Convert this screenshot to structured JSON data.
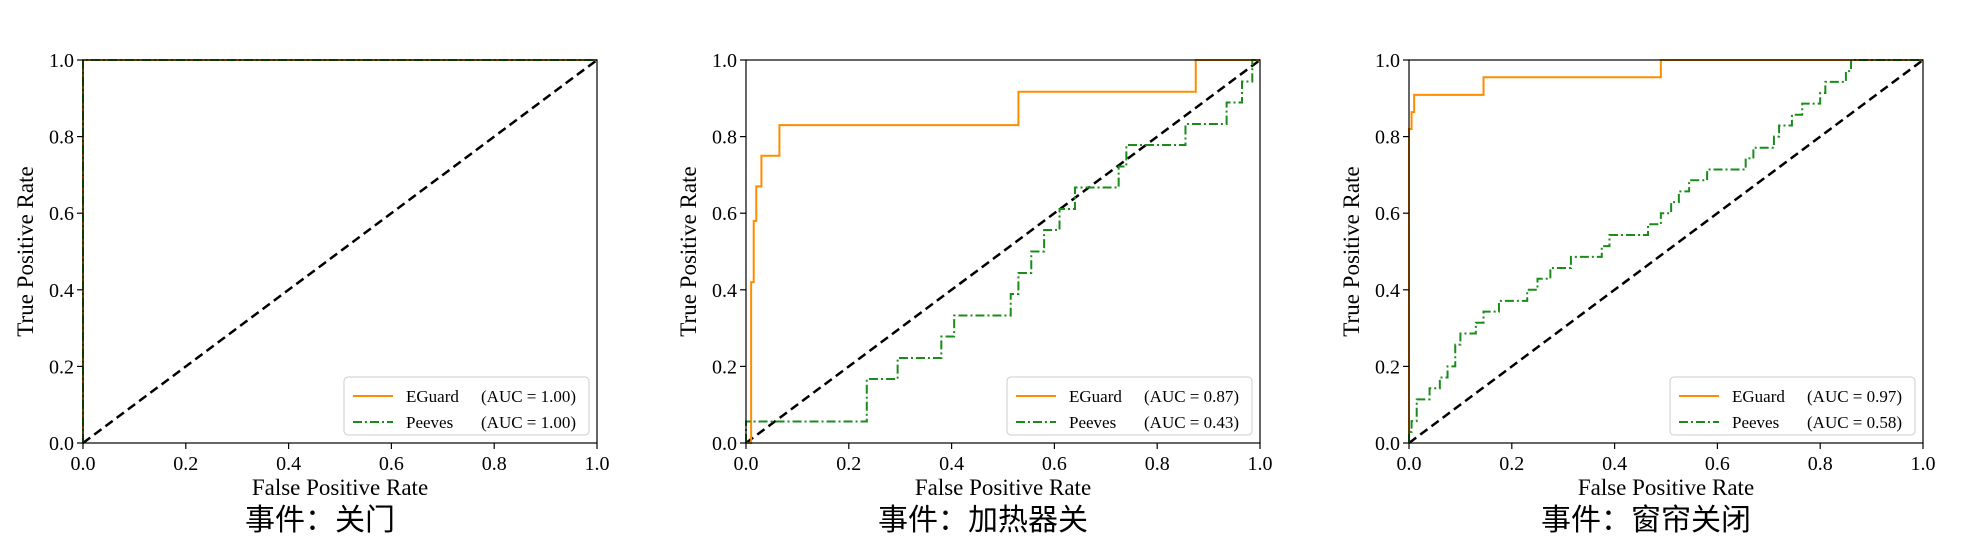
{
  "colors": {
    "eguard": "#ff8c00",
    "peeves": "#1a8c1a",
    "diagonal": "#000000"
  },
  "chart_data": [
    {
      "type": "line",
      "caption": "事件：关门",
      "xlabel": "False Positive Rate",
      "ylabel": "True Positive Rate",
      "xlim": [
        0,
        1
      ],
      "ylim": [
        0,
        1
      ],
      "xticks": [
        "0.0",
        "0.2",
        "0.4",
        "0.6",
        "0.8",
        "1.0"
      ],
      "yticks": [
        "0.0",
        "0.2",
        "0.4",
        "0.6",
        "0.8",
        "1.0"
      ],
      "grid": false,
      "legend_position": "lower-right",
      "diagonal": true,
      "series": [
        {
          "name": "EGuard",
          "auc": "(AUC = 1.00)",
          "style": "solid",
          "x": [
            0,
            0,
            1
          ],
          "y": [
            0,
            1,
            1
          ]
        },
        {
          "name": "Peeves",
          "auc": "(AUC = 1.00)",
          "style": "dashdot",
          "x": [
            0,
            0,
            1
          ],
          "y": [
            0,
            1,
            1
          ]
        }
      ]
    },
    {
      "type": "line",
      "caption": "事件：加热器关",
      "xlabel": "False Positive Rate",
      "ylabel": "True Positive Rate",
      "xlim": [
        0,
        1
      ],
      "ylim": [
        0,
        1
      ],
      "xticks": [
        "0.0",
        "0.2",
        "0.4",
        "0.6",
        "0.8",
        "1.0"
      ],
      "yticks": [
        "0.0",
        "0.2",
        "0.4",
        "0.6",
        "0.8",
        "1.0"
      ],
      "grid": false,
      "legend_position": "lower-right",
      "diagonal": true,
      "series": [
        {
          "name": "EGuard",
          "auc": "(AUC = 0.87)",
          "style": "solid",
          "x": [
            0,
            0.01,
            0.01,
            0.015,
            0.015,
            0.02,
            0.02,
            0.03,
            0.03,
            0.065,
            0.065,
            0.53,
            0.53,
            0.875,
            0.875,
            1
          ],
          "y": [
            0,
            0,
            0.42,
            0.42,
            0.58,
            0.58,
            0.67,
            0.67,
            0.75,
            0.75,
            0.83,
            0.83,
            0.917,
            0.917,
            1.0,
            1.0
          ]
        },
        {
          "name": "Peeves",
          "auc": "(AUC = 0.43)",
          "style": "dashdot",
          "x": [
            0,
            0,
            0.235,
            0.235,
            0.295,
            0.295,
            0.38,
            0.38,
            0.405,
            0.405,
            0.515,
            0.515,
            0.53,
            0.53,
            0.555,
            0.555,
            0.58,
            0.58,
            0.61,
            0.61,
            0.64,
            0.64,
            0.725,
            0.725,
            0.74,
            0.74,
            0.855,
            0.855,
            0.935,
            0.935,
            0.965,
            0.965,
            0.985,
            0.985,
            1
          ],
          "y": [
            0,
            0.056,
            0.056,
            0.167,
            0.167,
            0.222,
            0.222,
            0.278,
            0.278,
            0.333,
            0.333,
            0.389,
            0.389,
            0.444,
            0.444,
            0.5,
            0.5,
            0.556,
            0.556,
            0.611,
            0.611,
            0.667,
            0.667,
            0.722,
            0.722,
            0.778,
            0.778,
            0.833,
            0.833,
            0.889,
            0.889,
            0.944,
            0.944,
            1.0,
            1.0
          ]
        }
      ]
    },
    {
      "type": "line",
      "caption": "事件：窗帘关闭",
      "xlabel": "False Positive Rate",
      "ylabel": "True Positive Rate",
      "xlim": [
        0,
        1
      ],
      "ylim": [
        0,
        1
      ],
      "xticks": [
        "0.0",
        "0.2",
        "0.4",
        "0.6",
        "0.8",
        "1.0"
      ],
      "yticks": [
        "0.0",
        "0.2",
        "0.4",
        "0.6",
        "0.8",
        "1.0"
      ],
      "grid": false,
      "legend_position": "lower-right",
      "diagonal": true,
      "series": [
        {
          "name": "EGuard",
          "auc": "(AUC = 0.97)",
          "style": "solid",
          "x": [
            0,
            0,
            0.005,
            0.005,
            0.01,
            0.01,
            0.145,
            0.145,
            0.49,
            0.49,
            1
          ],
          "y": [
            0,
            0.82,
            0.82,
            0.864,
            0.864,
            0.909,
            0.909,
            0.955,
            0.955,
            1.0,
            1.0
          ]
        },
        {
          "name": "Peeves",
          "auc": "(AUC = 0.58)",
          "style": "dashdot",
          "x": [
            0,
            0,
            0.005,
            0.005,
            0.015,
            0.015,
            0.04,
            0.04,
            0.06,
            0.06,
            0.075,
            0.075,
            0.09,
            0.09,
            0.1,
            0.1,
            0.13,
            0.13,
            0.145,
            0.145,
            0.175,
            0.175,
            0.23,
            0.23,
            0.25,
            0.25,
            0.275,
            0.275,
            0.315,
            0.315,
            0.375,
            0.375,
            0.39,
            0.39,
            0.465,
            0.465,
            0.49,
            0.49,
            0.51,
            0.51,
            0.525,
            0.525,
            0.545,
            0.545,
            0.58,
            0.58,
            0.655,
            0.655,
            0.67,
            0.67,
            0.71,
            0.71,
            0.72,
            0.72,
            0.745,
            0.745,
            0.765,
            0.765,
            0.8,
            0.8,
            0.81,
            0.81,
            0.85,
            0.85,
            0.86,
            0.86,
            0.99,
            0.99,
            1
          ],
          "y": [
            0,
            0.029,
            0.029,
            0.057,
            0.057,
            0.114,
            0.114,
            0.143,
            0.143,
            0.171,
            0.171,
            0.2,
            0.2,
            0.257,
            0.257,
            0.286,
            0.286,
            0.314,
            0.314,
            0.343,
            0.343,
            0.371,
            0.371,
            0.4,
            0.4,
            0.429,
            0.429,
            0.457,
            0.457,
            0.486,
            0.486,
            0.514,
            0.514,
            0.543,
            0.543,
            0.571,
            0.571,
            0.6,
            0.6,
            0.629,
            0.629,
            0.657,
            0.657,
            0.686,
            0.686,
            0.714,
            0.714,
            0.743,
            0.743,
            0.771,
            0.771,
            0.8,
            0.8,
            0.829,
            0.829,
            0.857,
            0.857,
            0.886,
            0.886,
            0.914,
            0.914,
            0.943,
            0.943,
            0.971,
            0.971,
            1.0,
            1.0,
            1.0,
            1.0
          ]
        }
      ]
    }
  ]
}
